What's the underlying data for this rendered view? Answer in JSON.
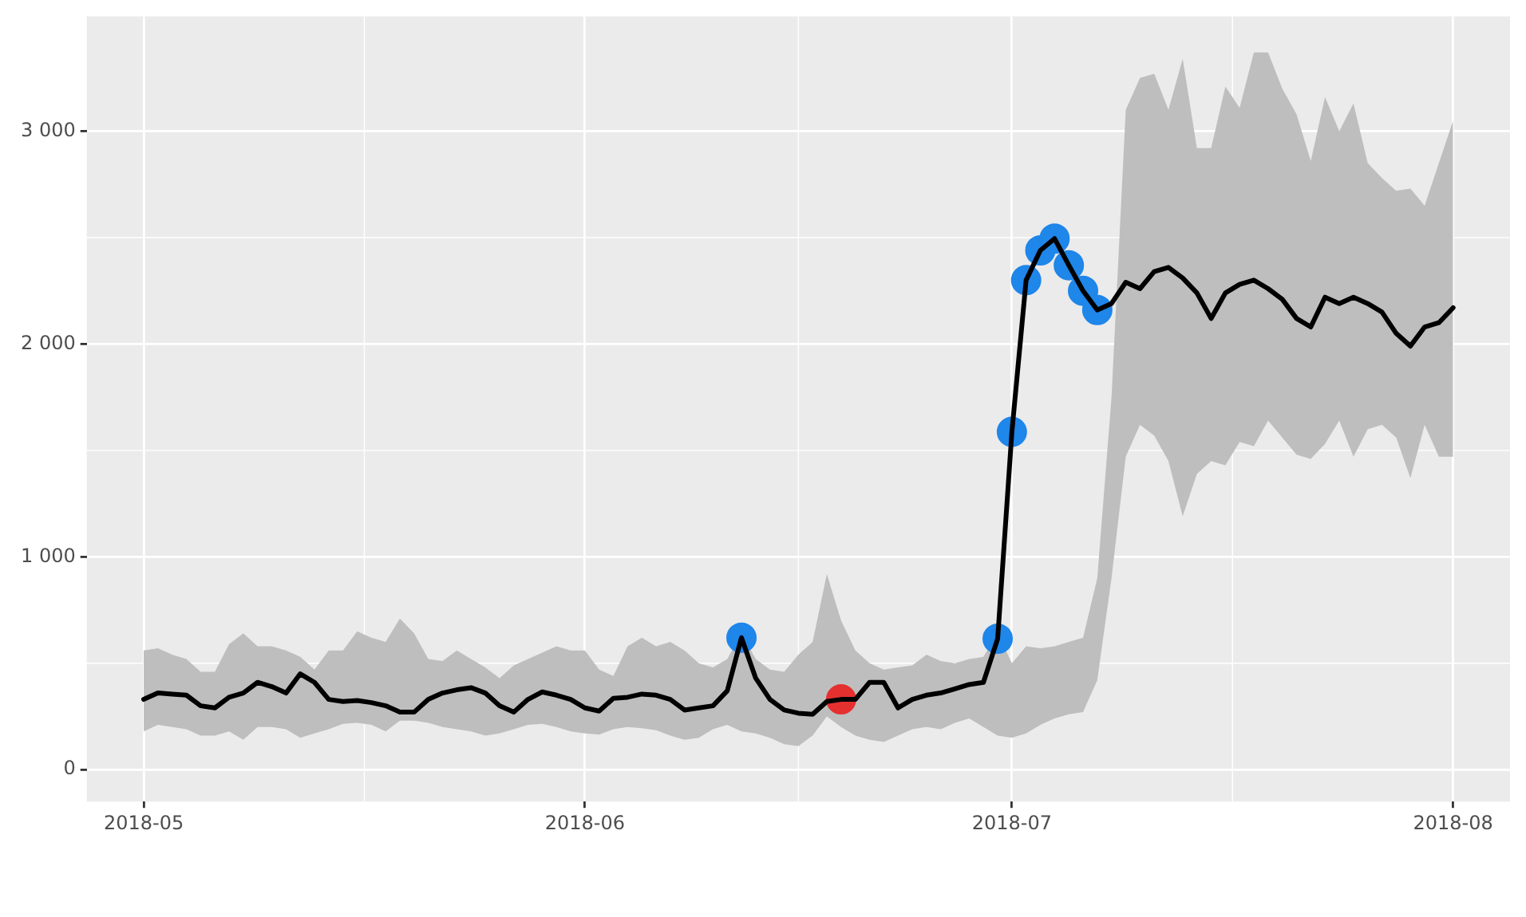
{
  "chart_data": {
    "type": "line",
    "x": [
      "2018-05-01",
      "2018-05-02",
      "2018-05-03",
      "2018-05-04",
      "2018-05-05",
      "2018-05-06",
      "2018-05-07",
      "2018-05-08",
      "2018-05-09",
      "2018-05-10",
      "2018-05-11",
      "2018-05-12",
      "2018-05-13",
      "2018-05-14",
      "2018-05-15",
      "2018-05-16",
      "2018-05-17",
      "2018-05-18",
      "2018-05-19",
      "2018-05-20",
      "2018-05-21",
      "2018-05-22",
      "2018-05-23",
      "2018-05-24",
      "2018-05-25",
      "2018-05-26",
      "2018-05-27",
      "2018-05-28",
      "2018-05-29",
      "2018-05-30",
      "2018-05-31",
      "2018-06-01",
      "2018-06-02",
      "2018-06-03",
      "2018-06-04",
      "2018-06-05",
      "2018-06-06",
      "2018-06-07",
      "2018-06-08",
      "2018-06-09",
      "2018-06-10",
      "2018-06-11",
      "2018-06-12",
      "2018-06-13",
      "2018-06-14",
      "2018-06-15",
      "2018-06-16",
      "2018-06-17",
      "2018-06-18",
      "2018-06-19",
      "2018-06-20",
      "2018-06-21",
      "2018-06-22",
      "2018-06-23",
      "2018-06-24",
      "2018-06-25",
      "2018-06-26",
      "2018-06-27",
      "2018-06-28",
      "2018-06-29",
      "2018-06-30",
      "2018-07-01",
      "2018-07-02",
      "2018-07-03",
      "2018-07-04",
      "2018-07-05",
      "2018-07-06",
      "2018-07-07",
      "2018-07-08",
      "2018-07-09",
      "2018-07-10",
      "2018-07-11",
      "2018-07-12",
      "2018-07-13",
      "2018-07-14",
      "2018-07-15",
      "2018-07-16",
      "2018-07-17",
      "2018-07-18",
      "2018-07-19",
      "2018-07-20",
      "2018-07-21",
      "2018-07-22",
      "2018-07-23",
      "2018-07-24",
      "2018-07-25",
      "2018-07-26",
      "2018-07-27",
      "2018-07-28",
      "2018-07-29",
      "2018-07-30",
      "2018-07-31",
      "2018-08-01"
    ],
    "series": [
      {
        "marker": "none",
        "color": "#000000",
        "values": [
          330,
          360,
          355,
          350,
          300,
          290,
          340,
          360,
          410,
          390,
          360,
          450,
          410,
          330,
          320,
          325,
          315,
          300,
          270,
          270,
          330,
          360,
          375,
          385,
          360,
          300,
          270,
          330,
          365,
          350,
          330,
          290,
          275,
          335,
          340,
          355,
          350,
          330,
          280,
          290,
          300,
          370,
          620,
          430,
          330,
          280,
          265,
          260,
          320,
          330,
          330,
          410,
          410,
          290,
          330,
          350,
          360,
          380,
          400,
          410,
          615,
          1587,
          2300,
          2440,
          2495,
          2370,
          2250,
          2160,
          2190,
          2290,
          2260,
          2340,
          2360,
          2310,
          2240,
          2120,
          2240,
          2280,
          2300,
          2260,
          2210,
          2120,
          2080,
          2220,
          2190,
          2220,
          2190,
          2150,
          2050,
          1990,
          2080,
          2100,
          2170
        ],
        "lower": [
          180,
          210,
          200,
          190,
          160,
          160,
          180,
          140,
          200,
          200,
          190,
          150,
          170,
          190,
          215,
          220,
          210,
          180,
          230,
          230,
          220,
          200,
          190,
          180,
          160,
          170,
          190,
          210,
          215,
          200,
          180,
          170,
          165,
          190,
          200,
          195,
          185,
          160,
          140,
          150,
          190,
          210,
          180,
          170,
          150,
          120,
          110,
          160,
          250,
          200,
          160,
          140,
          130,
          160,
          190,
          200,
          190,
          220,
          240,
          200,
          160,
          150,
          170,
          210,
          240,
          260,
          270,
          420,
          900,
          1470,
          1620,
          1570,
          1450,
          1190,
          1390,
          1450,
          1430,
          1540,
          1520,
          1640,
          1560,
          1480,
          1460,
          1530,
          1640,
          1470,
          1600,
          1620,
          1560,
          1370,
          1620,
          1470,
          1470
        ],
        "upper": [
          560,
          570,
          540,
          520,
          460,
          460,
          590,
          640,
          580,
          580,
          560,
          530,
          470,
          560,
          560,
          650,
          620,
          600,
          710,
          640,
          520,
          510,
          560,
          520,
          480,
          430,
          490,
          520,
          550,
          580,
          560,
          560,
          470,
          440,
          580,
          620,
          580,
          600,
          560,
          500,
          480,
          520,
          640,
          520,
          470,
          460,
          540,
          600,
          920,
          700,
          560,
          500,
          470,
          480,
          490,
          540,
          510,
          500,
          520,
          530,
          640,
          500,
          580,
          570,
          580,
          600,
          620,
          900,
          1750,
          3100,
          3250,
          3270,
          3100,
          3340,
          2920,
          2920,
          3210,
          3110,
          3370,
          3370,
          3200,
          3080,
          2860,
          3160,
          3000,
          3130,
          2850,
          2780,
          2720,
          2730,
          2650,
          2850,
          3050
        ]
      },
      {
        "type": "scatter",
        "marker": "circle",
        "color": "#1f86ea",
        "x": [
          "2018-06-12",
          "2018-06-30",
          "2018-07-01",
          "2018-07-02",
          "2018-07-03",
          "2018-07-04",
          "2018-07-05",
          "2018-07-06",
          "2018-07-07"
        ],
        "values": [
          620,
          615,
          1587,
          2300,
          2440,
          2495,
          2370,
          2250,
          2160
        ]
      },
      {
        "type": "scatter",
        "marker": "circle",
        "color": "#e53030",
        "x": [
          "2018-06-19"
        ],
        "values": [
          330
        ]
      }
    ],
    "xlim": [
      "2018-04-27",
      "2018-08-05"
    ],
    "xticks": [
      {
        "value": "2018-05-01",
        "label": "2018-05"
      },
      {
        "value": "2018-06-01",
        "label": "2018-06"
      },
      {
        "value": "2018-07-01",
        "label": "2018-07"
      },
      {
        "value": "2018-08-01",
        "label": "2018-08"
      }
    ],
    "ylim": [
      -150,
      3540
    ],
    "yticks": [
      0,
      {
        "value": 1000,
        "label": "1 000"
      },
      {
        "value": 2000,
        "label": "2 000"
      },
      {
        "value": 3000,
        "label": "3 000"
      }
    ],
    "grid": true,
    "legend": false,
    "line_style": "solid"
  }
}
